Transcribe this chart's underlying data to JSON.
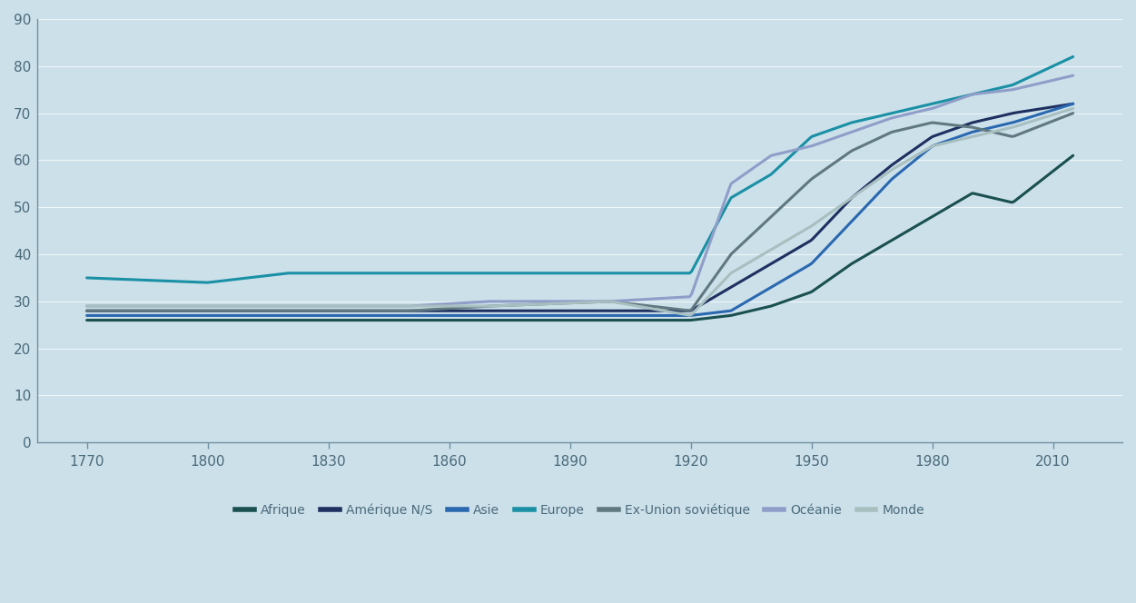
{
  "background_color": "#cce0ea",
  "ylim": [
    0,
    90
  ],
  "yticks": [
    0,
    10,
    20,
    30,
    40,
    50,
    60,
    70,
    80,
    90
  ],
  "xticks": [
    1770,
    1800,
    1830,
    1860,
    1890,
    1920,
    1950,
    1980,
    2010
  ],
  "series": [
    {
      "label": "Afrique",
      "color": "#1a5050",
      "linewidth": 2.2,
      "x": [
        1770,
        1800,
        1820,
        1850,
        1870,
        1900,
        1920,
        1930,
        1940,
        1950,
        1960,
        1970,
        1980,
        1990,
        2000,
        2015
      ],
      "y": [
        26,
        26,
        26,
        26,
        26,
        26,
        26,
        27,
        29,
        32,
        38,
        43,
        48,
        53,
        51,
        61
      ]
    },
    {
      "label": "Amérique N/S",
      "color": "#1e3060",
      "linewidth": 2.2,
      "x": [
        1770,
        1800,
        1820,
        1850,
        1870,
        1900,
        1920,
        1930,
        1940,
        1950,
        1960,
        1970,
        1980,
        1990,
        2000,
        2015
      ],
      "y": [
        28,
        28,
        28,
        28,
        28,
        28,
        28,
        33,
        38,
        43,
        52,
        59,
        65,
        68,
        70,
        72
      ]
    },
    {
      "label": "Asie",
      "color": "#2a68b0",
      "linewidth": 2.2,
      "x": [
        1770,
        1800,
        1820,
        1850,
        1870,
        1900,
        1920,
        1930,
        1940,
        1950,
        1960,
        1970,
        1980,
        1990,
        2000,
        2015
      ],
      "y": [
        27,
        27,
        27,
        27,
        27,
        27,
        27,
        28,
        33,
        38,
        47,
        56,
        63,
        66,
        68,
        72
      ]
    },
    {
      "label": "Europe",
      "color": "#1a90a5",
      "linewidth": 2.2,
      "x": [
        1770,
        1800,
        1820,
        1850,
        1870,
        1900,
        1920,
        1930,
        1940,
        1950,
        1960,
        1970,
        1980,
        1990,
        2000,
        2015
      ],
      "y": [
        35,
        34,
        36,
        36,
        36,
        36,
        36,
        52,
        57,
        65,
        68,
        70,
        72,
        74,
        76,
        82
      ]
    },
    {
      "label": "Ex-Union soviétique",
      "color": "#607880",
      "linewidth": 2.2,
      "x": [
        1770,
        1800,
        1820,
        1850,
        1870,
        1900,
        1920,
        1930,
        1940,
        1950,
        1960,
        1970,
        1980,
        1990,
        2000,
        2015
      ],
      "y": [
        28,
        28,
        28,
        28,
        29,
        30,
        28,
        40,
        48,
        56,
        62,
        66,
        68,
        67,
        65,
        70
      ]
    },
    {
      "label": "Océanie",
      "color": "#8f9ec8",
      "linewidth": 2.2,
      "x": [
        1770,
        1800,
        1820,
        1850,
        1870,
        1900,
        1920,
        1930,
        1940,
        1950,
        1960,
        1970,
        1980,
        1990,
        2000,
        2015
      ],
      "y": [
        29,
        29,
        29,
        29,
        30,
        30,
        31,
        55,
        61,
        63,
        66,
        69,
        71,
        74,
        75,
        78
      ]
    },
    {
      "label": "Monde",
      "color": "#a8bfc0",
      "linewidth": 2.2,
      "x": [
        1770,
        1800,
        1820,
        1850,
        1870,
        1900,
        1920,
        1930,
        1940,
        1950,
        1960,
        1970,
        1980,
        1990,
        2000,
        2015
      ],
      "y": [
        29,
        29,
        29,
        29,
        29,
        30,
        27,
        36,
        41,
        46,
        52,
        58,
        63,
        65,
        67,
        71
      ]
    }
  ],
  "legend_fontsize": 10,
  "tick_fontsize": 11,
  "axis_color": "#7090a0",
  "tick_color": "#4a6a7a"
}
